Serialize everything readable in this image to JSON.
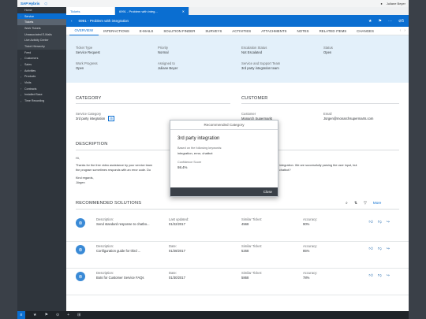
{
  "app": {
    "brand": "SAP Hybris",
    "user": "Juliane Beyer"
  },
  "sidebar": {
    "items": [
      {
        "label": "Home",
        "kind": "top"
      },
      {
        "label": "Service",
        "kind": "active"
      },
      {
        "label": "Tickets",
        "kind": "activesub"
      },
      {
        "label": "Work Tickets",
        "kind": "sub"
      },
      {
        "label": "Unassociated E-Mails",
        "kind": "sub"
      },
      {
        "label": "Live Activity Center",
        "kind": "sub"
      },
      {
        "label": "Ticket Hierarchy",
        "kind": "sub"
      },
      {
        "label": "Feed",
        "kind": "top"
      },
      {
        "label": "Customers",
        "kind": "group"
      },
      {
        "label": "Sales",
        "kind": "group"
      },
      {
        "label": "Activities",
        "kind": "group"
      },
      {
        "label": "Products",
        "kind": "group"
      },
      {
        "label": "Visits",
        "kind": "group"
      },
      {
        "label": "Contracts",
        "kind": "group"
      },
      {
        "label": "Installed Base",
        "kind": "group"
      },
      {
        "label": "Time Recording",
        "kind": "group"
      }
    ]
  },
  "tabs": {
    "first": "Tickets",
    "second": "6991 - Problem with integ..."
  },
  "header": {
    "title": "6991 - Problem with integration",
    "count": "5"
  },
  "navtabs": [
    "OVERVIEW",
    "INTERACTIONS",
    "E-MAILS",
    "SOLUTION FINDER",
    "SURVEYS",
    "ACTIVITIES",
    "ATTACHMENTS",
    "NOTES",
    "RELATED ITEMS",
    "CHANGES"
  ],
  "summary": {
    "ticket_type": {
      "label": "Ticket Type",
      "value": "Service Request"
    },
    "priority": {
      "label": "Priority",
      "value": "Normal"
    },
    "escalation": {
      "label": "Escalation Status",
      "value": "Not Escalated"
    },
    "status": {
      "label": "Status",
      "value": "Open"
    },
    "work_progress": {
      "label": "Work Progress",
      "value": "Open"
    },
    "assigned": {
      "label": "Assigned to",
      "value": "Juliane Beyer"
    },
    "team": {
      "label": "Service and Support Team",
      "value": "3rd party integration team"
    }
  },
  "category": {
    "title": "CATEGORY",
    "label": "Service Category",
    "value": "3rd party integration"
  },
  "customer": {
    "title": "CUSTOMER",
    "label": "Customer",
    "value": "Monarch Supermarkt",
    "email_label": "Email",
    "email": "Jürgen@monarchsupermarts.com"
  },
  "description": {
    "title": "DESCRIPTION",
    "greeting": "Hi,",
    "line1a": "Thanks for the free video assistance by your service team",
    "line1b": "integration. We are successfully parsing the user input, but",
    "line2a": "the program sometimes responds with an error code. Do",
    "line2b": "chatbot?",
    "closing": "Kind regards,",
    "name": "Jürgen"
  },
  "modal": {
    "header": "Recommended Category",
    "title": "3rd party integration",
    "based_label": "Based on the following keywords:",
    "keywords": "integration, error, chatbot",
    "confidence_label": "Confidence Score",
    "confidence": "98.4%",
    "close": "Close"
  },
  "solutions": {
    "title": "RECOMMENDED SOLUTIONS",
    "more": "More",
    "rows": [
      {
        "desc_label": "Description:",
        "desc": "Send standard response to chatbo...",
        "date_label": "Last updated:",
        "date": "01/22/2017",
        "sim_label": "Similar Ticket:",
        "sim": "4568",
        "acc_label": "Accuracy:",
        "acc": "90%"
      },
      {
        "desc_label": "Description:",
        "desc": "Configuration guide for third ...",
        "date_label": "Date:",
        "date": "01/28/2017",
        "sim_label": "Similar Ticket:",
        "sim": "5268",
        "acc_label": "Accuracy:",
        "acc": "85%"
      },
      {
        "desc_label": "Description:",
        "desc": "Bots for Customer Service FAQs",
        "date_label": "Date:",
        "date": "01/30/2017",
        "sim_label": "Similar Ticket:",
        "sim": "5868",
        "acc_label": "Accuracy:",
        "acc": "78%"
      }
    ]
  },
  "colors": {
    "accent": "#0a6ed1",
    "success": "#2b8c3a",
    "sidebar": "#2f353c"
  }
}
